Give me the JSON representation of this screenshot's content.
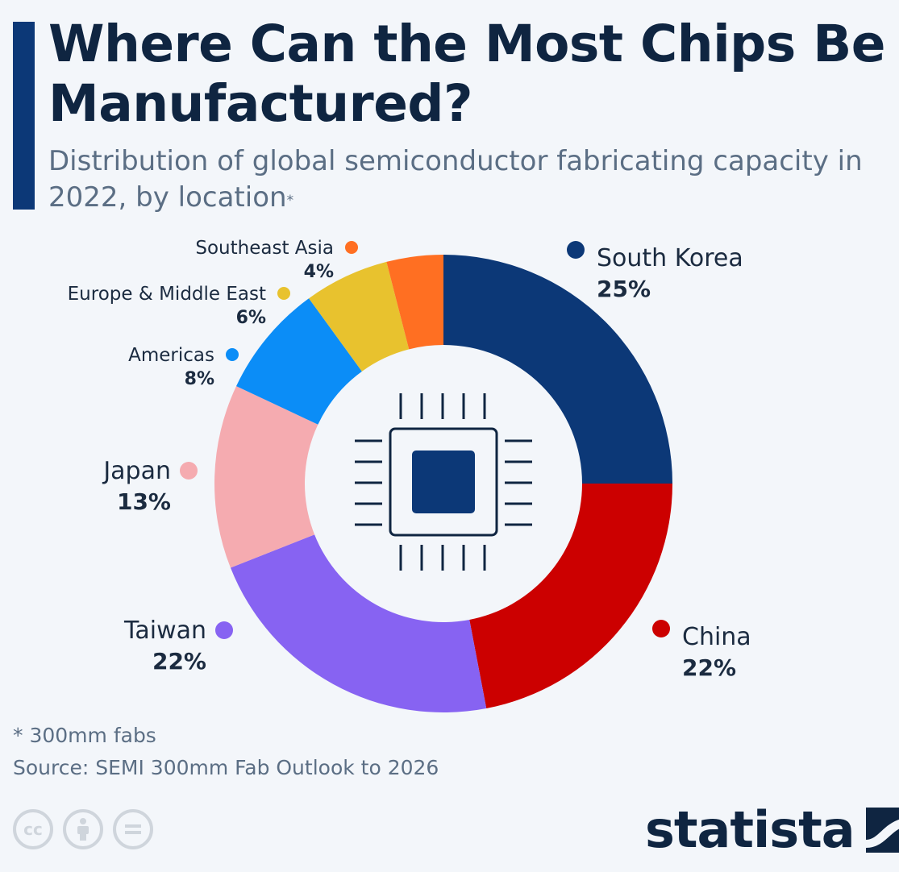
{
  "header": {
    "title": "Where Can the Most Chips Be Manufactured?",
    "subtitle": "Distribution of global semiconductor fabricating capacity in 2022, by location",
    "subtitle_marker": "*"
  },
  "chart_data": {
    "type": "pie",
    "style": "donut",
    "unit": "%",
    "slices": [
      {
        "label": "South Korea",
        "value": 25,
        "display": "25%",
        "color": "#0c3877"
      },
      {
        "label": "China",
        "value": 22,
        "display": "22%",
        "color": "#cc0000"
      },
      {
        "label": "Taiwan",
        "value": 22,
        "display": "22%",
        "color": "#8763f2"
      },
      {
        "label": "Japan",
        "value": 13,
        "display": "13%",
        "color": "#f5abb0"
      },
      {
        "label": "Americas",
        "value": 8,
        "display": "8%",
        "color": "#0b8df7"
      },
      {
        "label": "Europe & Middle East",
        "value": 6,
        "display": "6%",
        "color": "#e8c22e"
      },
      {
        "label": "Southeast Asia",
        "value": 4,
        "display": "4%",
        "color": "#ff6f22"
      }
    ],
    "center_icon": "microchip-icon"
  },
  "footer": {
    "footnote": "* 300mm fabs",
    "source": "Source: SEMI 300mm Fab Outlook to 2026",
    "brand": "statista",
    "license_icons": [
      "cc-icon",
      "attribution-icon",
      "no-derivatives-icon"
    ]
  }
}
